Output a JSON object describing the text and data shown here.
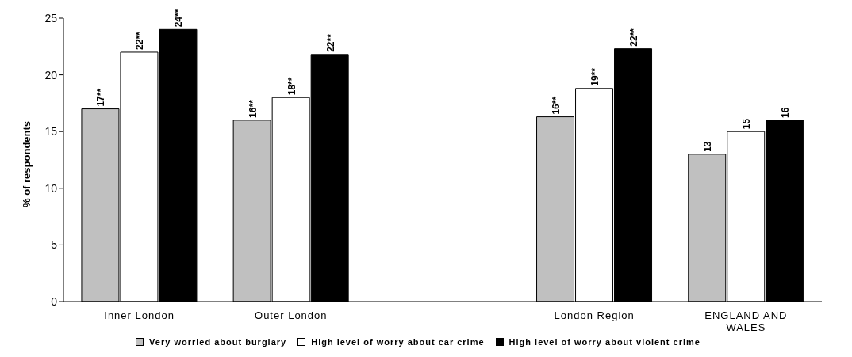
{
  "chart_data": {
    "type": "bar",
    "ylabel": "% of respondents",
    "categories": [
      "Inner London",
      "Outer London",
      null,
      "London Region",
      "ENGLAND AND WALES"
    ],
    "series": [
      {
        "name": "Very worried about burglary",
        "color": "#c0c0c0",
        "values": [
          17,
          16,
          null,
          16.3,
          13
        ],
        "value_labels": [
          "17**",
          "16**",
          null,
          "16**",
          "13"
        ]
      },
      {
        "name": "High level of worry about car crime",
        "color": "#ffffff",
        "values": [
          22,
          18,
          null,
          18.8,
          15
        ],
        "value_labels": [
          "22**",
          "18**",
          null,
          "19**",
          "15"
        ]
      },
      {
        "name": "High level of worry about violent crime",
        "color": "#000000",
        "values": [
          24,
          21.8,
          null,
          22.3,
          16
        ],
        "value_labels": [
          "24**",
          "22**",
          null,
          "22**",
          "16"
        ]
      }
    ],
    "ylim": [
      0,
      25
    ],
    "yticks": [
      0,
      5,
      10,
      15,
      20,
      25
    ],
    "grid": false,
    "legend": "bottom"
  }
}
